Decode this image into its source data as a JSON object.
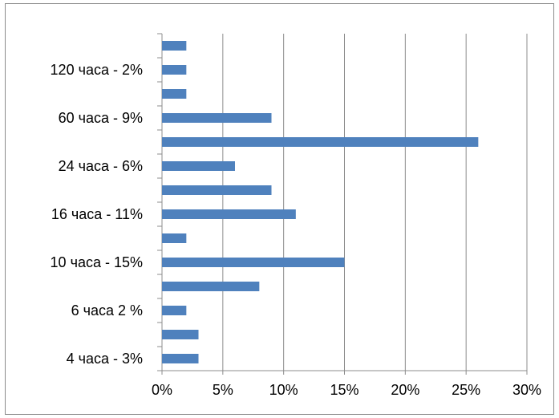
{
  "chart_data": {
    "type": "bar",
    "orientation": "horizontal",
    "categories": [
      "4 часа -  3%",
      "",
      "6 часа 2 %",
      "",
      "10 часа - 15%",
      "",
      "16 часа - 11%",
      "",
      "24 часа - 6%",
      "",
      "60 часа - 9%",
      "",
      "120 часа - 2%",
      ""
    ],
    "values": [
      3,
      3,
      2,
      8,
      15,
      2,
      11,
      9,
      6,
      26,
      9,
      2,
      2,
      2
    ],
    "x_ticks": [
      "0%",
      "5%",
      "10%",
      "15%",
      "20%",
      "25%",
      "30%"
    ],
    "xlim": [
      0,
      30
    ],
    "grid": "vertical",
    "bar_color": "#4f81bd",
    "title": "",
    "xlabel": "",
    "ylabel": ""
  }
}
